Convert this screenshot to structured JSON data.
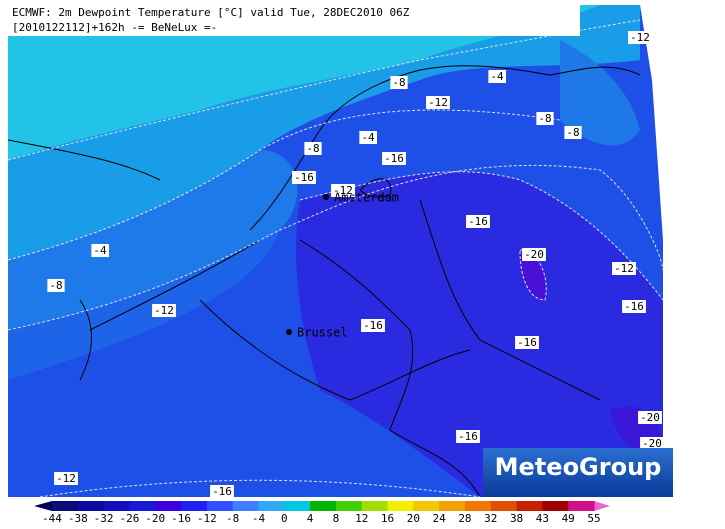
{
  "header": {
    "title": "ECMWF: 2m Dewpoint Temperature [°C] valid Tue, 28DEC2010 06Z",
    "subtitle": "[2010122112]+162h -= BeNeLux =-"
  },
  "cities": [
    "Amsterdam",
    "Brussel"
  ],
  "contours": [
    "-12",
    "-8",
    "-4",
    "-12",
    "-8",
    "-8",
    "-4",
    "-8",
    "-16",
    "-16",
    "-12",
    "-16",
    "-20",
    "-4",
    "-12",
    "-8",
    "-12",
    "-16",
    "-16",
    "-16",
    "-20",
    "-16",
    "-20",
    "-12",
    "-16"
  ],
  "logo": "MeteoGroup",
  "colorbar": {
    "labels": [
      -44,
      -38,
      -32,
      -26,
      -20,
      -16,
      -12,
      -8,
      -4,
      0,
      4,
      8,
      12,
      16,
      20,
      24,
      28,
      32,
      38,
      43,
      49,
      55
    ],
    "colors": [
      "#0a0a78",
      "#0a0aa0",
      "#1010c0",
      "#1818d8",
      "#3a00e0",
      "#2020f0",
      "#3050ff",
      "#3c80ff",
      "#30a8f8",
      "#00c8e0",
      "#00b400",
      "#40d000",
      "#a0e000",
      "#f0f000",
      "#f0c800",
      "#f0a000",
      "#f07800",
      "#e05000",
      "#c82000",
      "#a00000",
      "#d0108a"
    ],
    "under": "#000050",
    "over": "#f060d0"
  }
}
